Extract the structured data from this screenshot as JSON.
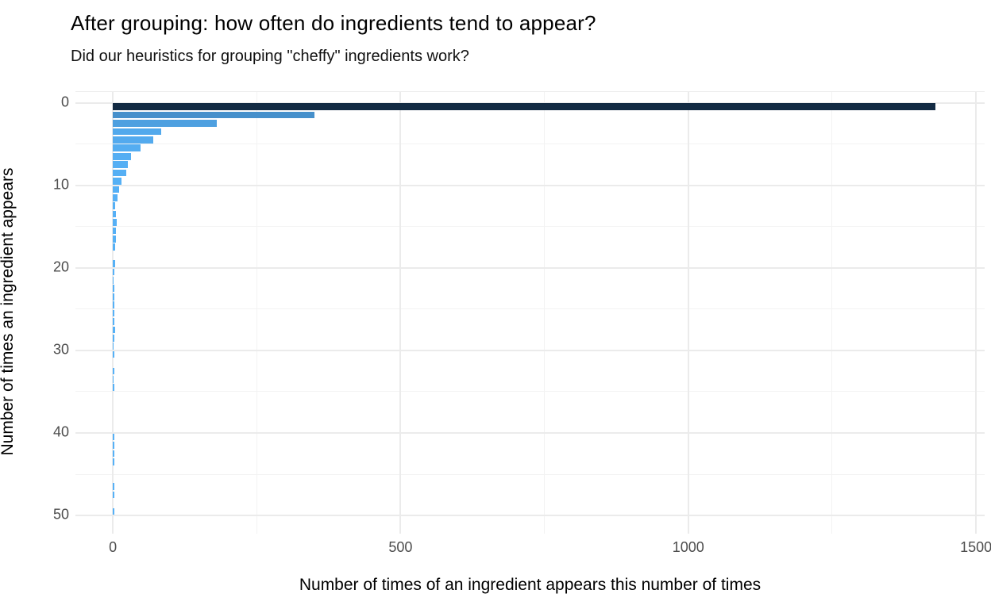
{
  "chart_data": {
    "type": "bar",
    "orientation": "horizontal",
    "title": "After grouping: how often do ingredients tend to appear?",
    "subtitle": "Did our heuristics for grouping \"cheffy\" ingredients work?",
    "xlabel": "Number of times of an ingredient appears this number of times",
    "ylabel": "Number of times an ingredient appears",
    "x_ticks": [
      0,
      500,
      1000,
      1500
    ],
    "x_minor_ticks": [
      250,
      750,
      1250
    ],
    "y_ticks": [
      0,
      10,
      20,
      30,
      40,
      50
    ],
    "y_minor_ticks": [
      5,
      15,
      25,
      35,
      45
    ],
    "xlim": [
      -65,
      1515
    ],
    "ylim": [
      -1.3,
      52.2
    ],
    "y_direction": "down",
    "grid": true,
    "legend": "none",
    "bars": [
      {
        "appears": 1,
        "count": 1430
      },
      {
        "appears": 2,
        "count": 350
      },
      {
        "appears": 3,
        "count": 180
      },
      {
        "appears": 4,
        "count": 84
      },
      {
        "appears": 5,
        "count": 70
      },
      {
        "appears": 6,
        "count": 48
      },
      {
        "appears": 7,
        "count": 31
      },
      {
        "appears": 8,
        "count": 26
      },
      {
        "appears": 9,
        "count": 23
      },
      {
        "appears": 10,
        "count": 15
      },
      {
        "appears": 11,
        "count": 11
      },
      {
        "appears": 12,
        "count": 8
      },
      {
        "appears": 13,
        "count": 4
      },
      {
        "appears": 14,
        "count": 6
      },
      {
        "appears": 15,
        "count": 7
      },
      {
        "appears": 16,
        "count": 6
      },
      {
        "appears": 17,
        "count": 5
      },
      {
        "appears": 18,
        "count": 4
      },
      {
        "appears": 20,
        "count": 4
      },
      {
        "appears": 21,
        "count": 2
      },
      {
        "appears": 22,
        "count": 1
      },
      {
        "appears": 23,
        "count": 2
      },
      {
        "appears": 24,
        "count": 3
      },
      {
        "appears": 25,
        "count": 2
      },
      {
        "appears": 26,
        "count": 3
      },
      {
        "appears": 27,
        "count": 2
      },
      {
        "appears": 28,
        "count": 4
      },
      {
        "appears": 29,
        "count": 3
      },
      {
        "appears": 30,
        "count": 1
      },
      {
        "appears": 31,
        "count": 2
      },
      {
        "appears": 33,
        "count": 2
      },
      {
        "appears": 34,
        "count": 1
      },
      {
        "appears": 35,
        "count": 2
      },
      {
        "appears": 41,
        "count": 2
      },
      {
        "appears": 42,
        "count": 2
      },
      {
        "appears": 43,
        "count": 2
      },
      {
        "appears": 44,
        "count": 2
      },
      {
        "appears": 47,
        "count": 2
      },
      {
        "appears": 48,
        "count": 2
      },
      {
        "appears": 50,
        "count": 2
      }
    ],
    "fill_low_color": "#56B1F7",
    "fill_high_color": "#132B43",
    "major_grid_color": "#ebebeb",
    "minor_grid_color": "#f3f3f3",
    "tick_label_color": "#4d4d4d",
    "text_color": "#000000"
  }
}
